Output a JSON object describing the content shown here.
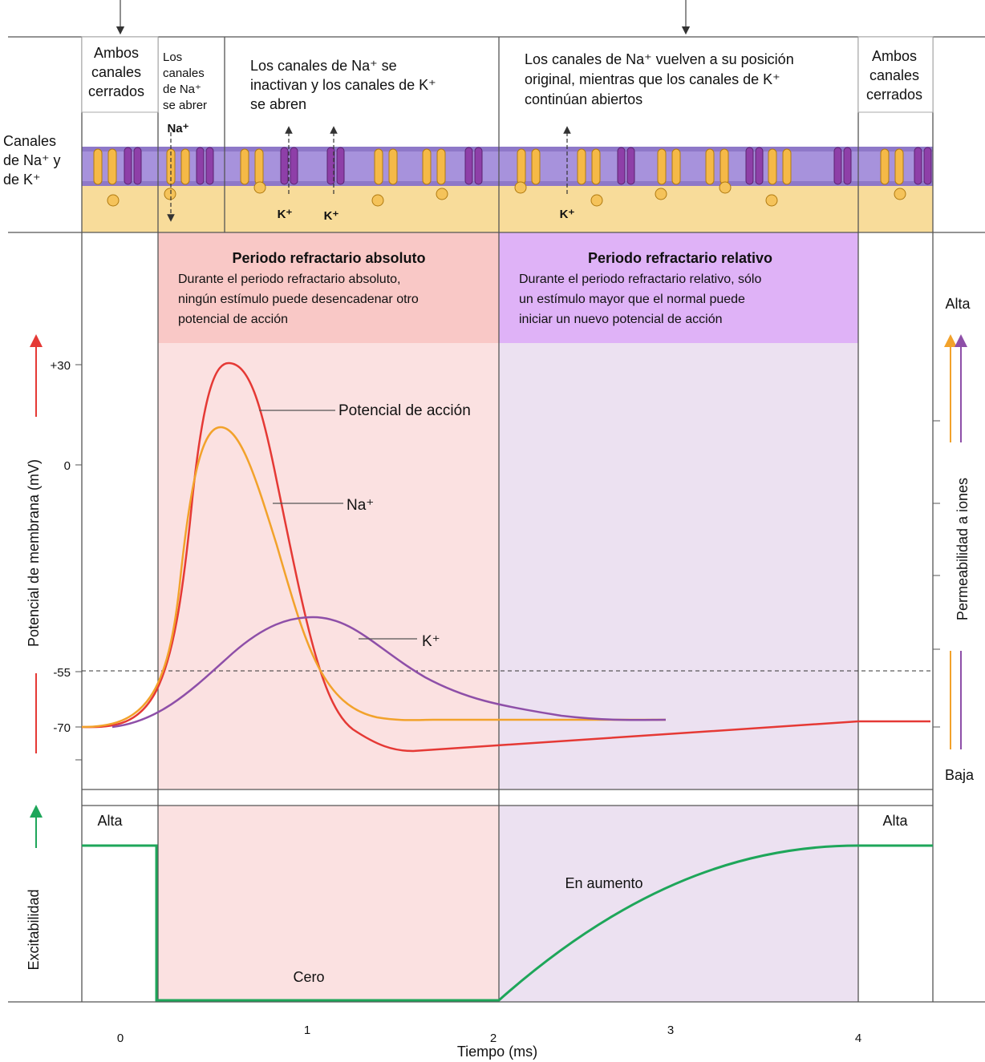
{
  "membrane": {
    "label": [
      "Canales",
      "de Na⁺ y",
      "de K⁺"
    ],
    "boxes": [
      {
        "lines": [
          "Ambos",
          "canales",
          "cerrados"
        ]
      },
      {
        "lines": [
          "Los",
          "canales",
          "de Na⁺",
          "se abrer"
        ]
      },
      {
        "lines": [
          "Los   canales   de   Na⁺   se",
          "inactivan y los canales de K⁺",
          "se abren"
        ]
      },
      {
        "lines": [
          "Los canales de Na⁺ vuelven a su posición",
          "original, mientras que los canales de K⁺",
          "continúan abiertos"
        ]
      },
      {
        "lines": [
          "Ambos",
          "canales",
          "cerrados"
        ]
      }
    ],
    "ions": [
      "Na⁺",
      "K⁺",
      "K⁺",
      "K⁺"
    ]
  },
  "periods": [
    {
      "title": "Periodo refractario absoluto",
      "lines": [
        "Durante el periodo refractario absoluto,",
        "ningún estímulo puede desencadenar otro",
        "potencial de acción"
      ]
    },
    {
      "title": "Periodo refractario relativo",
      "lines": [
        "Durante el periodo refractario relativo, sólo",
        "un estímulo mayor que el normal puede",
        "iniciar un nuevo potencial de acción"
      ]
    }
  ],
  "potential": {
    "axis_label": "Potencial de membrana (mV)",
    "ticks": [
      "+30",
      "0",
      "-55",
      "-70"
    ],
    "curve_labels": [
      "Potencial de acción",
      "Na⁺",
      "K⁺"
    ]
  },
  "permeability": {
    "axis_label": "Permeabilidad a iones",
    "high": "Alta",
    "low": "Baja"
  },
  "excitability": {
    "axis_label": "Excitabilidad",
    "labels": [
      "Alta",
      "Alta",
      "En aumento",
      "Cero"
    ]
  },
  "time_axis": {
    "ticks": [
      "0",
      "1",
      "2",
      "3",
      "4"
    ],
    "label": "Tiempo (ms)"
  }
}
